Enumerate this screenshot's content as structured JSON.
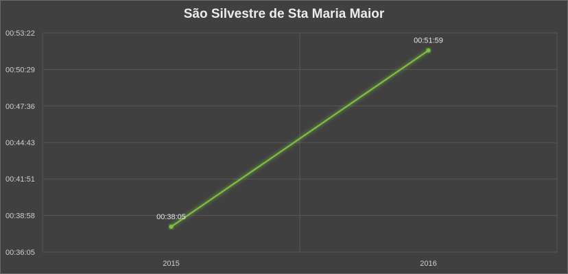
{
  "chart_data": {
    "type": "line",
    "title": "São Silvestre de Sta Maria Maior",
    "categories": [
      "2015",
      "2016"
    ],
    "series": [
      {
        "values_seconds": [
          2285,
          3119
        ],
        "values": [
          "00:38:05",
          "00:51:59"
        ]
      }
    ],
    "y_ticks": [
      "00:36:05",
      "00:38:58",
      "00:41:51",
      "00:44:43",
      "00:47:36",
      "00:50:29",
      "00:53:22"
    ],
    "y_tick_seconds": [
      2165,
      2338,
      2511,
      2683,
      2856,
      3029,
      3202
    ],
    "ylim_seconds": [
      2165,
      3202
    ],
    "grid": true,
    "legend": "none",
    "colors": {
      "line": "#7dc142",
      "background": "#404040",
      "grid": "#575757"
    }
  }
}
